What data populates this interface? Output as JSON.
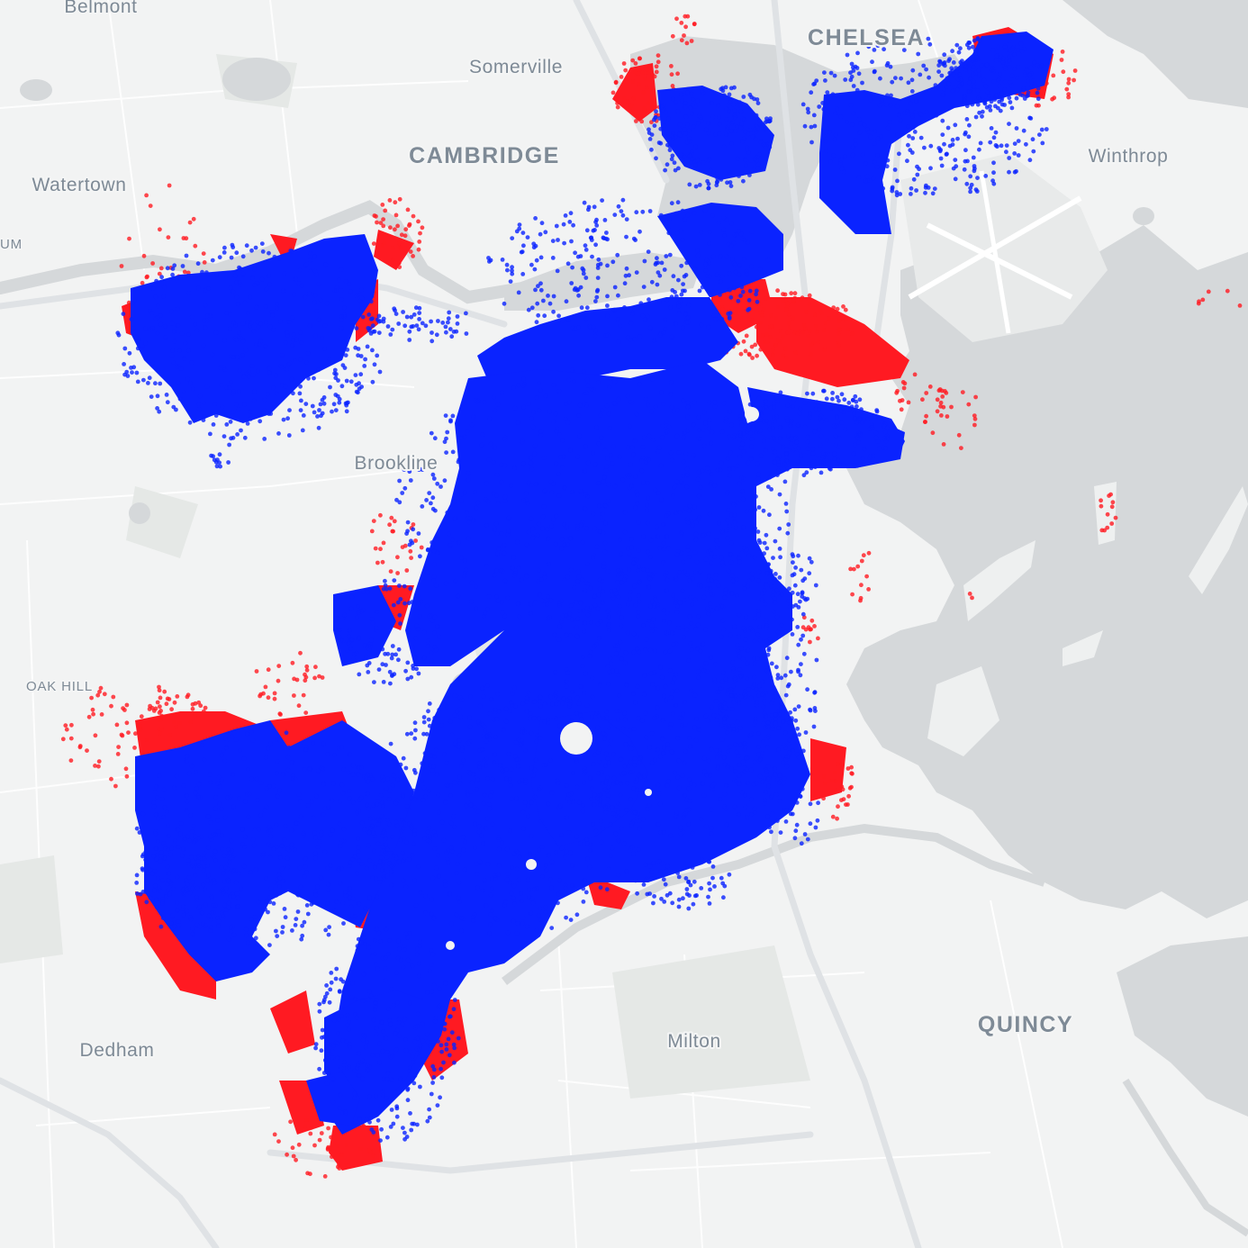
{
  "map": {
    "colors": {
      "land": "#f2f3f3",
      "water": "#d5d8da",
      "park": "#e5e8e6",
      "road": "#ffffff",
      "highway": "#dde0e3",
      "label": "#7e8a96",
      "point_primary": "#0a23ff",
      "point_secondary": "#ff1a22"
    },
    "labels": [
      {
        "text": "Belmont"
      },
      {
        "text": "CHELSEA"
      },
      {
        "text": "Somerville"
      },
      {
        "text": "CAMBRIDGE"
      },
      {
        "text": "Winthrop"
      },
      {
        "text": "Watertown"
      },
      {
        "text": "UM"
      },
      {
        "text": "Brookline"
      },
      {
        "text": "OAK HILL"
      },
      {
        "text": "Dedham"
      },
      {
        "text": "Milton"
      },
      {
        "text": "QUINCY"
      }
    ],
    "point_layers": [
      {
        "color_key": "point_secondary",
        "icon": "red-dot-cluster"
      },
      {
        "color_key": "point_primary",
        "icon": "blue-dot-cluster"
      }
    ]
  }
}
